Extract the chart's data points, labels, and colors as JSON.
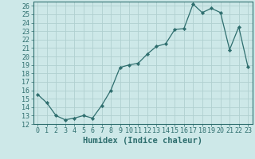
{
  "x": [
    0,
    1,
    2,
    3,
    4,
    5,
    6,
    7,
    8,
    9,
    10,
    11,
    12,
    13,
    14,
    15,
    16,
    17,
    18,
    19,
    20,
    21,
    22,
    23
  ],
  "y": [
    15.5,
    14.5,
    13.0,
    12.5,
    12.7,
    13.0,
    12.7,
    14.2,
    16.0,
    18.7,
    19.0,
    19.2,
    20.3,
    21.2,
    21.5,
    23.2,
    23.3,
    26.2,
    25.2,
    25.7,
    25.2,
    20.8,
    23.5,
    18.8
  ],
  "line_color": "#2e6e6e",
  "marker": "D",
  "marker_size": 2.2,
  "bg_color": "#cde8e8",
  "grid_color": "#b0d0d0",
  "xlabel": "Humidex (Indice chaleur)",
  "xlim": [
    -0.5,
    23.5
  ],
  "ylim": [
    12,
    26.5
  ],
  "yticks": [
    12,
    13,
    14,
    15,
    16,
    17,
    18,
    19,
    20,
    21,
    22,
    23,
    24,
    25,
    26
  ],
  "xticks": [
    0,
    1,
    2,
    3,
    4,
    5,
    6,
    7,
    8,
    9,
    10,
    11,
    12,
    13,
    14,
    15,
    16,
    17,
    18,
    19,
    20,
    21,
    22,
    23
  ],
  "tick_fontsize": 6.0,
  "xlabel_fontsize": 7.5
}
